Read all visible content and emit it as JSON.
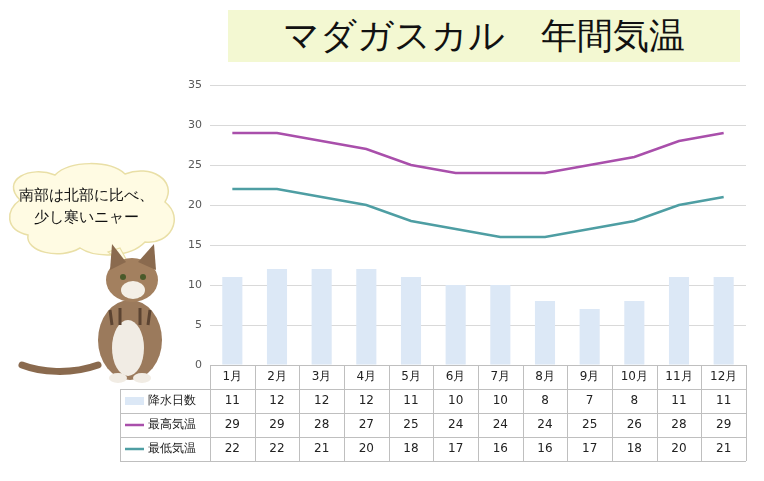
{
  "chart_data": {
    "type": "bar",
    "title": "マダガスカル　年間気温",
    "annotation": "南部は北部に比べ、少し寒いニャー",
    "categories": [
      "1月",
      "2月",
      "3月",
      "4月",
      "5月",
      "6月",
      "7月",
      "8月",
      "9月",
      "10月",
      "11月",
      "12月"
    ],
    "series": [
      {
        "name": "降水日数",
        "type": "bar",
        "color": "#dce8f6",
        "values": [
          11,
          12,
          12,
          12,
          11,
          10,
          10,
          8,
          7,
          8,
          11,
          11
        ]
      },
      {
        "name": "最高気温",
        "type": "line",
        "color": "#a94fab",
        "marker": "none",
        "values": [
          29,
          29,
          28,
          27,
          25,
          24,
          24,
          24,
          25,
          26,
          28,
          29
        ]
      },
      {
        "name": "最低気温",
        "type": "line",
        "color": "#4e9ea3",
        "marker": "none",
        "values": [
          22,
          22,
          21,
          20,
          18,
          17,
          16,
          16,
          17,
          18,
          20,
          21
        ]
      }
    ],
    "ylim": [
      0,
      35
    ],
    "yticks": [
      0,
      5,
      10,
      15,
      20,
      25,
      30,
      35
    ],
    "grid": true
  }
}
